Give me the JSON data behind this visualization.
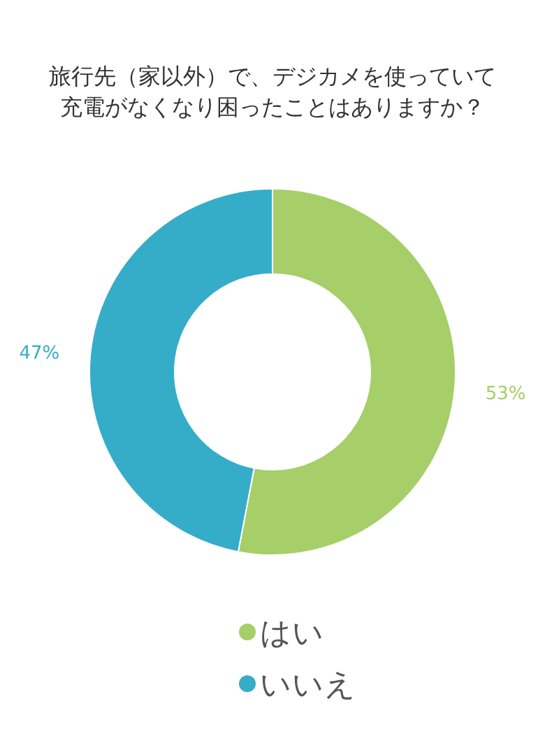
{
  "chart_data": {
    "type": "donut",
    "title": "旅行先（家以外）で、デジカメを使っていて充電がなくなり困ったことはありますか？",
    "categories": [
      "はい",
      "いいえ"
    ],
    "values": [
      53,
      47
    ],
    "colors": [
      "#a6ce69",
      "#35adc9"
    ],
    "value_labels": [
      "53%",
      "47%"
    ],
    "legend": "bottom"
  }
}
